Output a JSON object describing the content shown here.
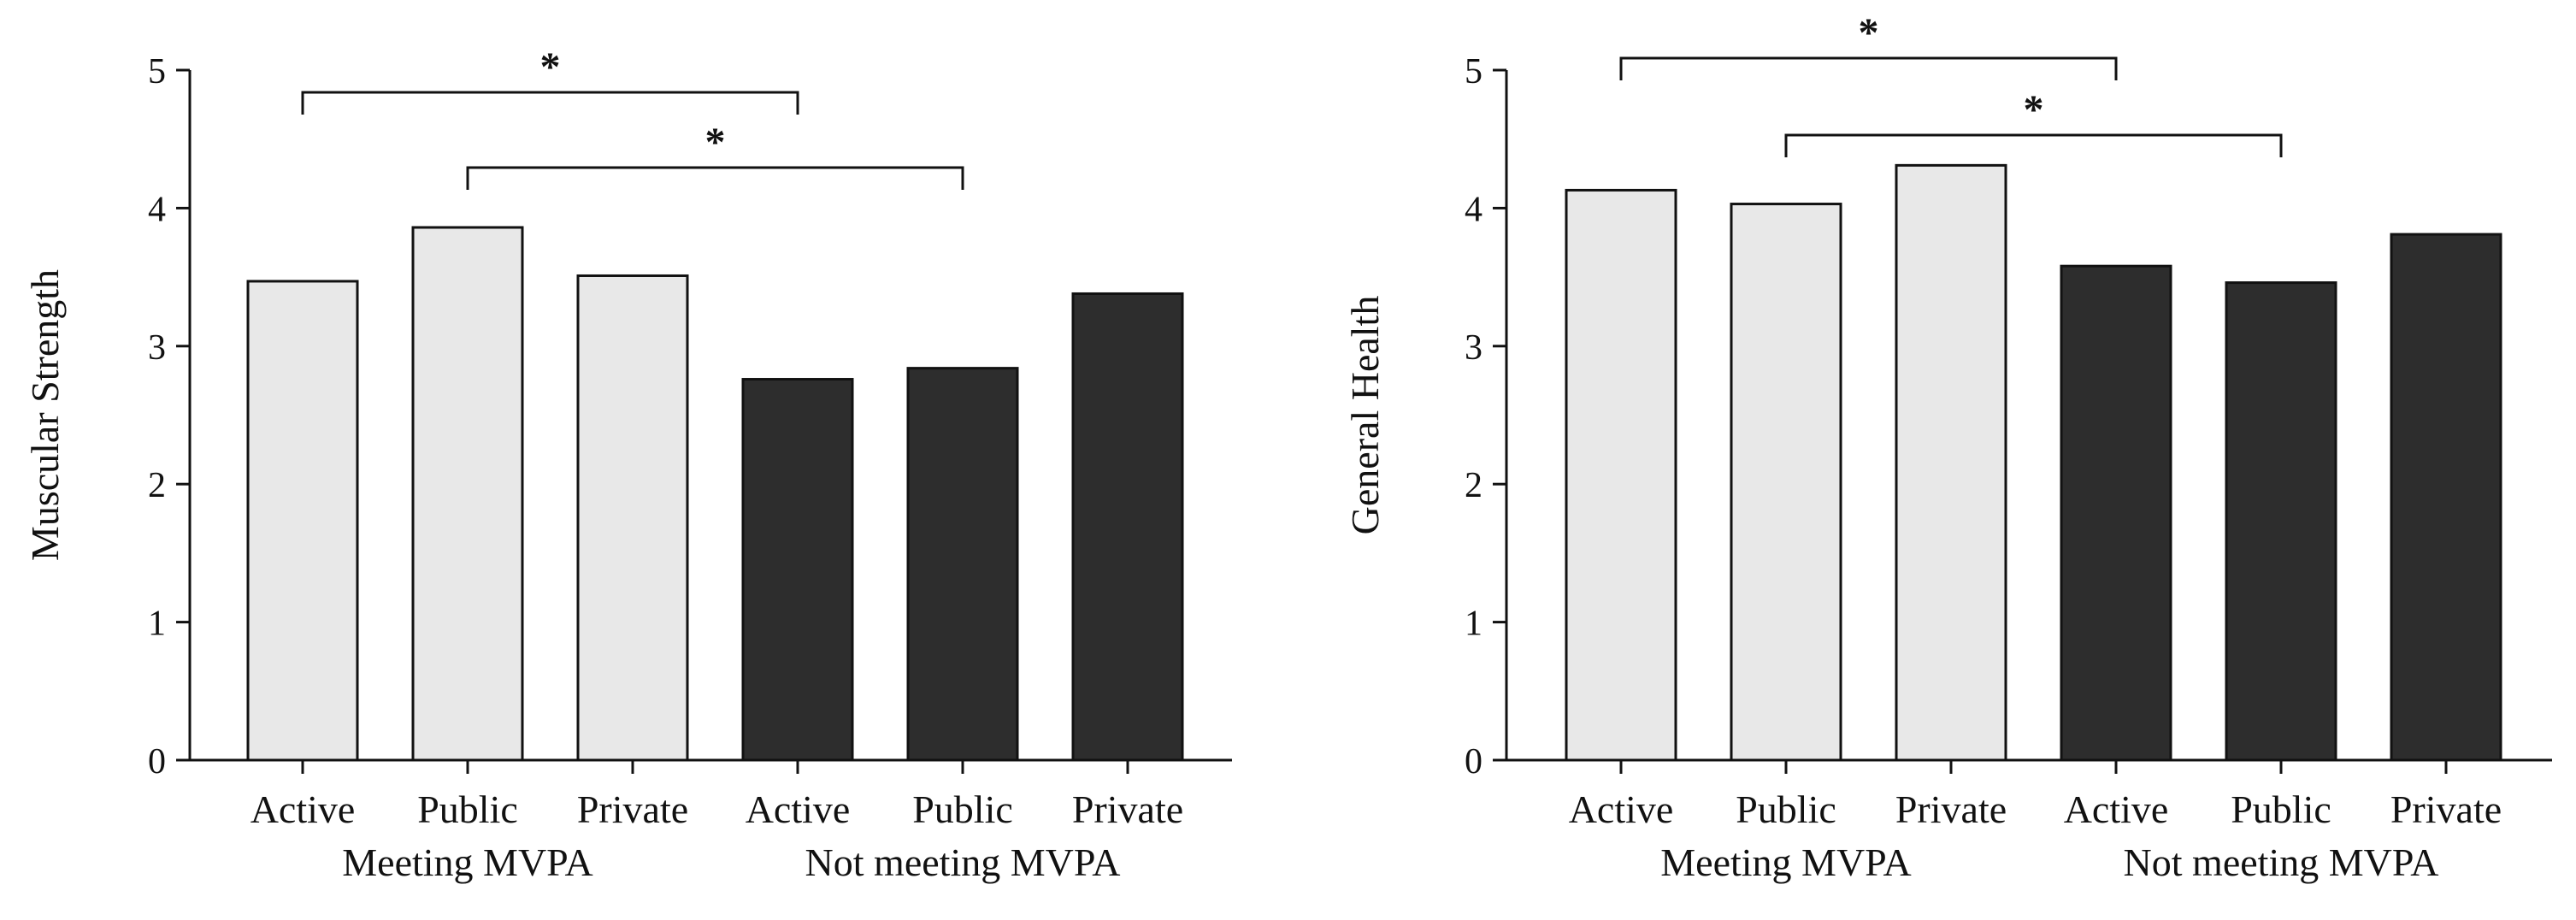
{
  "chart_data": [
    {
      "type": "bar",
      "ylabel": "Muscular Strength",
      "ylim": [
        0,
        5
      ],
      "yticks": [
        0,
        1,
        2,
        3,
        4,
        5
      ],
      "categories": [
        "Active",
        "Public",
        "Private",
        "Active",
        "Public",
        "Private"
      ],
      "groups": [
        {
          "label": "Meeting MVPA",
          "start": 0,
          "end": 2,
          "fill": "#e8e8e8"
        },
        {
          "label": "Not meeting MVPA",
          "start": 3,
          "end": 5,
          "fill": "#2d2d2d"
        }
      ],
      "values": [
        3.47,
        3.86,
        3.51,
        2.76,
        2.84,
        3.38
      ],
      "significance": [
        {
          "from": 0,
          "to": 3,
          "label": "*"
        },
        {
          "from": 1,
          "to": 4,
          "label": "*"
        }
      ]
    },
    {
      "type": "bar",
      "ylabel": "General Health",
      "ylim": [
        0,
        5
      ],
      "yticks": [
        0,
        1,
        2,
        3,
        4,
        5
      ],
      "categories": [
        "Active",
        "Public",
        "Private",
        "Active",
        "Public",
        "Private"
      ],
      "groups": [
        {
          "label": "Meeting MVPA",
          "start": 0,
          "end": 2,
          "fill": "#e8e8e8"
        },
        {
          "label": "Not meeting MVPA",
          "start": 3,
          "end": 5,
          "fill": "#2d2d2d"
        }
      ],
      "values": [
        4.13,
        4.03,
        4.31,
        3.58,
        3.46,
        3.81
      ],
      "significance": [
        {
          "from": 0,
          "to": 3,
          "label": "*"
        },
        {
          "from": 1,
          "to": 4,
          "label": "*"
        }
      ]
    }
  ]
}
